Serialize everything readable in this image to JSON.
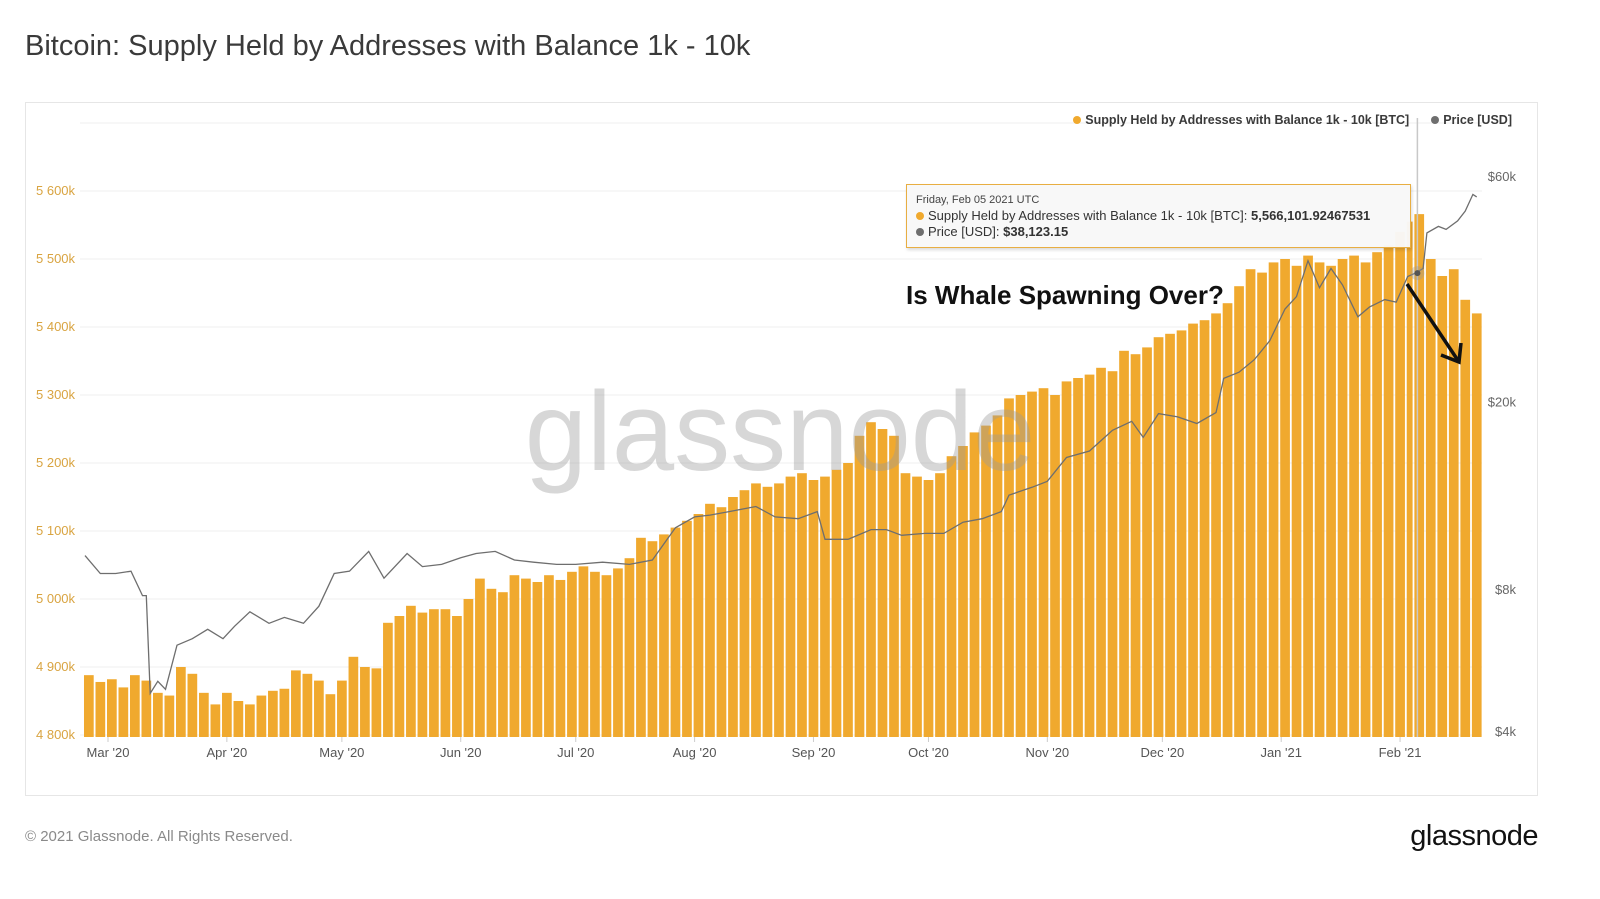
{
  "header": {
    "title": "Bitcoin: Supply Held by Addresses with Balance 1k - 10k"
  },
  "footer": {
    "copyright": "© 2021 Glassnode. All Rights Reserved.",
    "logo": "glassnode"
  },
  "watermark": "glassnode",
  "annotation": {
    "text": "Is Whale Spawning Over?",
    "arrow": "down-right"
  },
  "tooltip": {
    "date": "Friday, Feb 05 2021 UTC",
    "supply_label": "Supply Held by Addresses with Balance 1k - 10k [BTC]: ",
    "supply_value": "5,566,101.92467531",
    "price_label": "Price [USD]: ",
    "price_value": "$38,123.15"
  },
  "colors": {
    "supply": "#f0a92e",
    "price": "#6e6e6e",
    "left_axis": "#d9a441",
    "annotation": "#111111"
  },
  "chart_data": {
    "type": "bar+line",
    "title": "Bitcoin: Supply Held by Addresses with Balance 1k - 10k",
    "legend_position": "top-right",
    "grid": true,
    "x_ticks": [
      "Mar '20",
      "Apr '20",
      "May '20",
      "Jun '20",
      "Jul '20",
      "Aug '20",
      "Sep '20",
      "Oct '20",
      "Nov '20",
      "Dec '20",
      "Jan '21",
      "Feb '21"
    ],
    "x_tick_dates": [
      "2020-03-01",
      "2020-04-01",
      "2020-05-01",
      "2020-06-01",
      "2020-07-01",
      "2020-08-01",
      "2020-09-01",
      "2020-10-01",
      "2020-11-01",
      "2020-12-01",
      "2021-01-01",
      "2021-02-01"
    ],
    "left_axis": {
      "ylim": [
        4800,
        5700
      ],
      "ticks": [
        4800,
        4900,
        5000,
        5100,
        5200,
        5300,
        5400,
        5500,
        5600
      ],
      "tick_labels": [
        "4 800k",
        "4 900k",
        "5 000k",
        "5 100k",
        "5 200k",
        "5 300k",
        "5 400k",
        "5 500k",
        "5 600k"
      ],
      "unit": "k BTC"
    },
    "right_axis": {
      "scale": "log",
      "ticks": [
        4000,
        8000,
        20000,
        60000
      ],
      "tick_labels": [
        "$4k",
        "$8k",
        "$20k",
        "$60k"
      ]
    },
    "series": [
      {
        "name": "Supply Held by Addresses with Balance 1k - 10k [BTC]",
        "type": "bar",
        "axis": "left",
        "points": [
          [
            "2020-02-24",
            4888
          ],
          [
            "2020-02-27",
            4878
          ],
          [
            "2020-03-01",
            4882
          ],
          [
            "2020-03-04",
            4870
          ],
          [
            "2020-03-07",
            4888
          ],
          [
            "2020-03-10",
            4880
          ],
          [
            "2020-03-13",
            4862
          ],
          [
            "2020-03-16",
            4858
          ],
          [
            "2020-03-19",
            4900
          ],
          [
            "2020-03-22",
            4890
          ],
          [
            "2020-03-25",
            4862
          ],
          [
            "2020-03-28",
            4845
          ],
          [
            "2020-03-31",
            4862
          ],
          [
            "2020-04-03",
            4850
          ],
          [
            "2020-04-06",
            4845
          ],
          [
            "2020-04-09",
            4858
          ],
          [
            "2020-04-12",
            4865
          ],
          [
            "2020-04-15",
            4868
          ],
          [
            "2020-04-18",
            4895
          ],
          [
            "2020-04-21",
            4890
          ],
          [
            "2020-04-24",
            4880
          ],
          [
            "2020-04-27",
            4860
          ],
          [
            "2020-04-30",
            4880
          ],
          [
            "2020-05-03",
            4915
          ],
          [
            "2020-05-06",
            4900
          ],
          [
            "2020-05-09",
            4898
          ],
          [
            "2020-05-12",
            4965
          ],
          [
            "2020-05-15",
            4975
          ],
          [
            "2020-05-18",
            4990
          ],
          [
            "2020-05-21",
            4980
          ],
          [
            "2020-05-24",
            4985
          ],
          [
            "2020-05-27",
            4985
          ],
          [
            "2020-05-30",
            4975
          ],
          [
            "2020-06-02",
            5000
          ],
          [
            "2020-06-05",
            5030
          ],
          [
            "2020-06-08",
            5015
          ],
          [
            "2020-06-11",
            5010
          ],
          [
            "2020-06-14",
            5035
          ],
          [
            "2020-06-17",
            5030
          ],
          [
            "2020-06-20",
            5025
          ],
          [
            "2020-06-23",
            5035
          ],
          [
            "2020-06-26",
            5028
          ],
          [
            "2020-06-29",
            5040
          ],
          [
            "2020-07-02",
            5048
          ],
          [
            "2020-07-05",
            5040
          ],
          [
            "2020-07-08",
            5035
          ],
          [
            "2020-07-11",
            5045
          ],
          [
            "2020-07-14",
            5060
          ],
          [
            "2020-07-17",
            5090
          ],
          [
            "2020-07-20",
            5085
          ],
          [
            "2020-07-23",
            5095
          ],
          [
            "2020-07-26",
            5105
          ],
          [
            "2020-07-29",
            5115
          ],
          [
            "2020-08-01",
            5125
          ],
          [
            "2020-08-04",
            5140
          ],
          [
            "2020-08-07",
            5135
          ],
          [
            "2020-08-10",
            5150
          ],
          [
            "2020-08-13",
            5160
          ],
          [
            "2020-08-16",
            5170
          ],
          [
            "2020-08-19",
            5165
          ],
          [
            "2020-08-22",
            5170
          ],
          [
            "2020-08-25",
            5180
          ],
          [
            "2020-08-28",
            5185
          ],
          [
            "2020-08-31",
            5175
          ],
          [
            "2020-09-03",
            5180
          ],
          [
            "2020-09-06",
            5190
          ],
          [
            "2020-09-09",
            5200
          ],
          [
            "2020-09-12",
            5240
          ],
          [
            "2020-09-15",
            5260
          ],
          [
            "2020-09-18",
            5250
          ],
          [
            "2020-09-21",
            5240
          ],
          [
            "2020-09-24",
            5185
          ],
          [
            "2020-09-27",
            5180
          ],
          [
            "2020-09-30",
            5175
          ],
          [
            "2020-10-03",
            5185
          ],
          [
            "2020-10-06",
            5210
          ],
          [
            "2020-10-09",
            5225
          ],
          [
            "2020-10-12",
            5245
          ],
          [
            "2020-10-15",
            5255
          ],
          [
            "2020-10-18",
            5270
          ],
          [
            "2020-10-21",
            5295
          ],
          [
            "2020-10-24",
            5300
          ],
          [
            "2020-10-27",
            5305
          ],
          [
            "2020-10-30",
            5310
          ],
          [
            "2020-11-02",
            5300
          ],
          [
            "2020-11-05",
            5320
          ],
          [
            "2020-11-08",
            5325
          ],
          [
            "2020-11-11",
            5330
          ],
          [
            "2020-11-14",
            5340
          ],
          [
            "2020-11-17",
            5335
          ],
          [
            "2020-11-20",
            5365
          ],
          [
            "2020-11-23",
            5360
          ],
          [
            "2020-11-26",
            5370
          ],
          [
            "2020-11-29",
            5385
          ],
          [
            "2020-12-02",
            5390
          ],
          [
            "2020-12-05",
            5395
          ],
          [
            "2020-12-08",
            5405
          ],
          [
            "2020-12-11",
            5410
          ],
          [
            "2020-12-14",
            5420
          ],
          [
            "2020-12-17",
            5435
          ],
          [
            "2020-12-20",
            5460
          ],
          [
            "2020-12-23",
            5485
          ],
          [
            "2020-12-26",
            5480
          ],
          [
            "2020-12-29",
            5495
          ],
          [
            "2021-01-01",
            5500
          ],
          [
            "2021-01-04",
            5490
          ],
          [
            "2021-01-07",
            5505
          ],
          [
            "2021-01-10",
            5495
          ],
          [
            "2021-01-13",
            5490
          ],
          [
            "2021-01-16",
            5500
          ],
          [
            "2021-01-19",
            5505
          ],
          [
            "2021-01-22",
            5495
          ],
          [
            "2021-01-25",
            5510
          ],
          [
            "2021-01-28",
            5520
          ],
          [
            "2021-01-31",
            5540
          ],
          [
            "2021-02-03",
            5555
          ],
          [
            "2021-02-05",
            5566
          ],
          [
            "2021-02-08",
            5500
          ],
          [
            "2021-02-11",
            5475
          ],
          [
            "2021-02-14",
            5485
          ],
          [
            "2021-02-17",
            5440
          ],
          [
            "2021-02-20",
            5420
          ]
        ]
      },
      {
        "name": "Price [USD]",
        "type": "line",
        "axis": "right",
        "points": [
          [
            "2020-02-24",
            9600
          ],
          [
            "2020-02-28",
            8800
          ],
          [
            "2020-03-03",
            8800
          ],
          [
            "2020-03-07",
            8900
          ],
          [
            "2020-03-10",
            7900
          ],
          [
            "2020-03-11",
            7900
          ],
          [
            "2020-03-12",
            4900
          ],
          [
            "2020-03-14",
            5200
          ],
          [
            "2020-03-16",
            5000
          ],
          [
            "2020-03-19",
            6200
          ],
          [
            "2020-03-23",
            6400
          ],
          [
            "2020-03-27",
            6700
          ],
          [
            "2020-03-31",
            6400
          ],
          [
            "2020-04-03",
            6800
          ],
          [
            "2020-04-07",
            7300
          ],
          [
            "2020-04-12",
            6900
          ],
          [
            "2020-04-16",
            7100
          ],
          [
            "2020-04-21",
            6900
          ],
          [
            "2020-04-25",
            7500
          ],
          [
            "2020-04-29",
            8800
          ],
          [
            "2020-05-03",
            8900
          ],
          [
            "2020-05-08",
            9800
          ],
          [
            "2020-05-12",
            8600
          ],
          [
            "2020-05-18",
            9700
          ],
          [
            "2020-05-22",
            9100
          ],
          [
            "2020-05-27",
            9200
          ],
          [
            "2020-06-01",
            9500
          ],
          [
            "2020-06-05",
            9700
          ],
          [
            "2020-06-10",
            9800
          ],
          [
            "2020-06-15",
            9400
          ],
          [
            "2020-06-20",
            9300
          ],
          [
            "2020-06-26",
            9200
          ],
          [
            "2020-07-01",
            9200
          ],
          [
            "2020-07-08",
            9300
          ],
          [
            "2020-07-15",
            9200
          ],
          [
            "2020-07-21",
            9400
          ],
          [
            "2020-07-27",
            11000
          ],
          [
            "2020-08-01",
            11600
          ],
          [
            "2020-08-05",
            11700
          ],
          [
            "2020-08-10",
            11900
          ],
          [
            "2020-08-17",
            12200
          ],
          [
            "2020-08-22",
            11600
          ],
          [
            "2020-08-28",
            11500
          ],
          [
            "2020-09-02",
            11900
          ],
          [
            "2020-09-04",
            10400
          ],
          [
            "2020-09-10",
            10400
          ],
          [
            "2020-09-16",
            10900
          ],
          [
            "2020-09-20",
            10900
          ],
          [
            "2020-09-24",
            10600
          ],
          [
            "2020-09-30",
            10700
          ],
          [
            "2020-10-05",
            10700
          ],
          [
            "2020-10-10",
            11300
          ],
          [
            "2020-10-15",
            11500
          ],
          [
            "2020-10-20",
            11900
          ],
          [
            "2020-10-22",
            12900
          ],
          [
            "2020-10-28",
            13400
          ],
          [
            "2020-11-01",
            13800
          ],
          [
            "2020-11-06",
            15500
          ],
          [
            "2020-11-12",
            16000
          ],
          [
            "2020-11-18",
            17700
          ],
          [
            "2020-11-23",
            18500
          ],
          [
            "2020-11-26",
            17100
          ],
          [
            "2020-11-30",
            19200
          ],
          [
            "2020-12-05",
            18900
          ],
          [
            "2020-12-10",
            18300
          ],
          [
            "2020-12-15",
            19300
          ],
          [
            "2020-12-17",
            22800
          ],
          [
            "2020-12-21",
            23500
          ],
          [
            "2020-12-25",
            25000
          ],
          [
            "2020-12-29",
            27400
          ],
          [
            "2021-01-02",
            32000
          ],
          [
            "2021-01-05",
            34000
          ],
          [
            "2021-01-08",
            40500
          ],
          [
            "2021-01-11",
            35500
          ],
          [
            "2021-01-14",
            39000
          ],
          [
            "2021-01-17",
            36000
          ],
          [
            "2021-01-21",
            30800
          ],
          [
            "2021-01-24",
            32300
          ],
          [
            "2021-01-28",
            33500
          ],
          [
            "2021-01-31",
            33100
          ],
          [
            "2021-02-03",
            37500
          ],
          [
            "2021-02-05",
            38123
          ],
          [
            "2021-02-07",
            39000
          ],
          [
            "2021-02-08",
            46400
          ],
          [
            "2021-02-11",
            47900
          ],
          [
            "2021-02-13",
            47200
          ],
          [
            "2021-02-16",
            49200
          ],
          [
            "2021-02-18",
            51600
          ],
          [
            "2021-02-20",
            56000
          ],
          [
            "2021-02-21",
            55300
          ]
        ]
      }
    ],
    "highlight_date": "2021-02-05"
  }
}
